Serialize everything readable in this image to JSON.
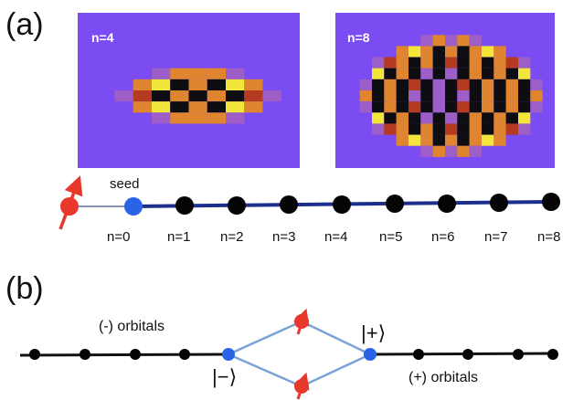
{
  "panel_a": {
    "label": "(a)",
    "maps": [
      {
        "label": "n=4",
        "grid": [
          "............",
          "............",
          "............",
          "............",
          "............",
          "....pooop...",
          "...oyKoKyo..",
          "..prKoKoKrp.",
          "...oyKoKyo..",
          "....pooop...",
          "............",
          "............",
          "............",
          "............"
        ]
      },
      {
        "label": "n=8",
        "grid": [
          "..................",
          "..................",
          ".......popop......",
          ".....oyoKoKoyo....",
          "...proKoKrKoKorp..",
          "...yKoKpKpKoKoKy..",
          "..pKoKrKpKrKoKoKp.",
          "..oKoKpKpKpKoKoKo.",
          "..pKoKrKpKrKoKoKp.",
          "...yKoKpKpKoKoKy..",
          "...proKoKrKoKorp..",
          ".....oyoKoKoyo....",
          ".......popop......",
          ".................."
        ]
      }
    ],
    "chain": {
      "seed_label": "seed",
      "site_labels": [
        "n=0",
        "n=1",
        "n=2",
        "n=3",
        "n=4",
        "n=5",
        "n=6",
        "n=7",
        "n=8"
      ]
    }
  },
  "panel_b": {
    "label": "(b)",
    "minus_orbitals": "(-) orbitals",
    "plus_orbitals": "(+) orbitals",
    "ket_plus": "|+⟩",
    "ket_minus": "|−⟩"
  },
  "colors": {
    "map_background": "#7b4cf2",
    "chain_line": "#1d2f8c",
    "site_dot": "#050505",
    "seed_dot": "#2a63e6",
    "spin_dot": "#e8382c",
    "arrow": "#e8382c",
    "diamond_line": "#7aa3d6",
    "K": "#0d0d12",
    "y": "#f2e63a",
    "o": "#e0852f",
    "r": "#b43a22",
    "p": "#9d5ec8"
  }
}
